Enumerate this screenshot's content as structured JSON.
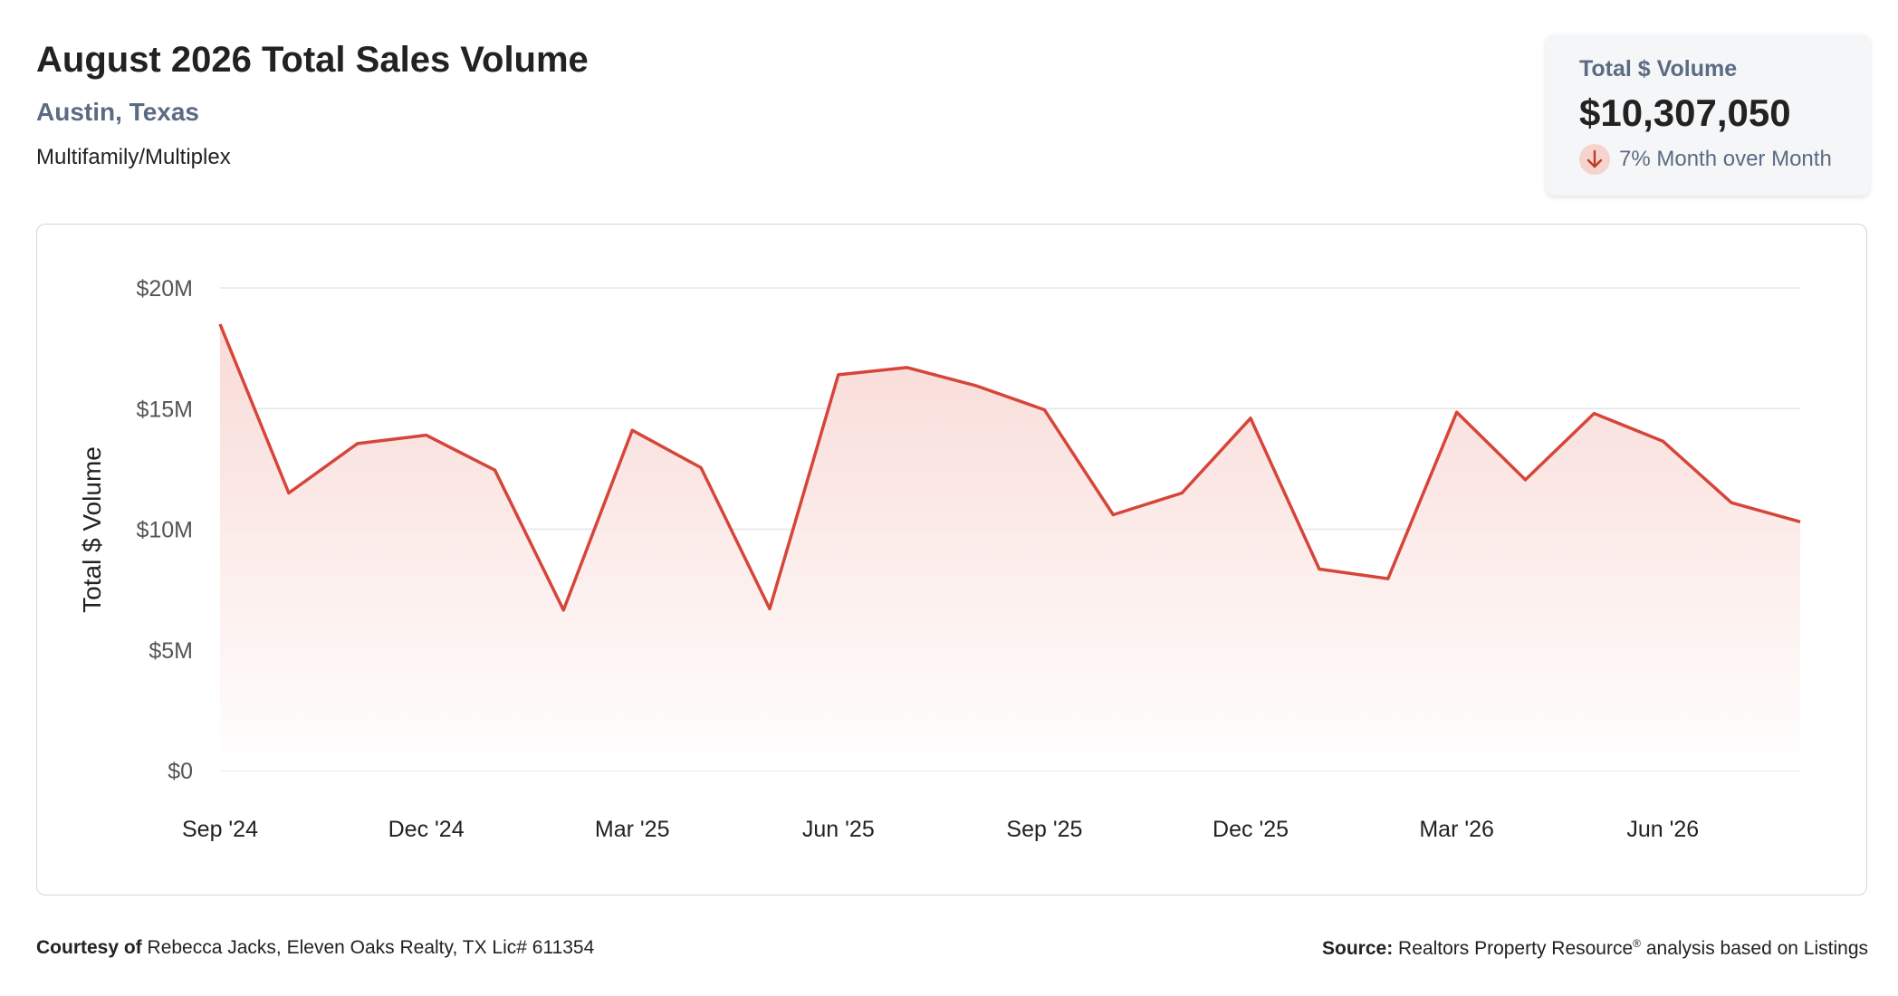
{
  "header": {
    "title": "August 2026 Total Sales Volume",
    "location": "Austin, Texas",
    "property_type": "Multifamily/Multiplex"
  },
  "kpi": {
    "label": "Total $ Volume",
    "value": "$10,307,050",
    "change_text": "7% Month over Month",
    "direction": "down",
    "arrow_icon": "arrow-down-icon"
  },
  "colors": {
    "line": "#d6453a",
    "area_top": "#f8d9d5",
    "grid": "#e5e5e5",
    "muted_text": "#5b6b82"
  },
  "chart_data": {
    "type": "area",
    "ylabel": "Total $ Volume",
    "ylim": [
      0,
      20000000
    ],
    "yticks": [
      {
        "value": 0,
        "label": "$0"
      },
      {
        "value": 5000000,
        "label": "$5M"
      },
      {
        "value": 10000000,
        "label": "$10M"
      },
      {
        "value": 15000000,
        "label": "$15M"
      },
      {
        "value": 20000000,
        "label": "$20M"
      }
    ],
    "categories": [
      "Sep '24",
      "Oct '24",
      "Nov '24",
      "Dec '24",
      "Jan '25",
      "Feb '25",
      "Mar '25",
      "Apr '25",
      "May '25",
      "Jun '25",
      "Jul '25",
      "Aug '25",
      "Sep '25",
      "Oct '25",
      "Nov '25",
      "Dec '25",
      "Jan '26",
      "Feb '26",
      "Mar '26",
      "Apr '26",
      "May '26",
      "Jun '26",
      "Jul '26",
      "Aug '26"
    ],
    "xtick_labels": [
      "Sep '24",
      "Dec '24",
      "Mar '25",
      "Jun '25",
      "Sep '25",
      "Dec '25",
      "Mar '26",
      "Jun '26"
    ],
    "xtick_indices": [
      0,
      3,
      6,
      9,
      12,
      15,
      18,
      21
    ],
    "values": [
      18500000,
      11500000,
      13550000,
      13900000,
      12450000,
      6650000,
      14100000,
      12550000,
      6700000,
      16400000,
      16700000,
      15950000,
      14950000,
      10600000,
      11500000,
      14600000,
      8350000,
      7950000,
      14850000,
      12050000,
      14800000,
      13650000,
      11100000,
      10307050
    ],
    "grid": true
  },
  "footer": {
    "courtesy_label": "Courtesy of",
    "courtesy_text": "Rebecca Jacks, Eleven Oaks Realty, TX Lic# 611354",
    "source_label": "Source:",
    "source_text": "Realtors Property Resource",
    "source_reg": "®",
    "source_suffix": "analysis based on Listings"
  }
}
